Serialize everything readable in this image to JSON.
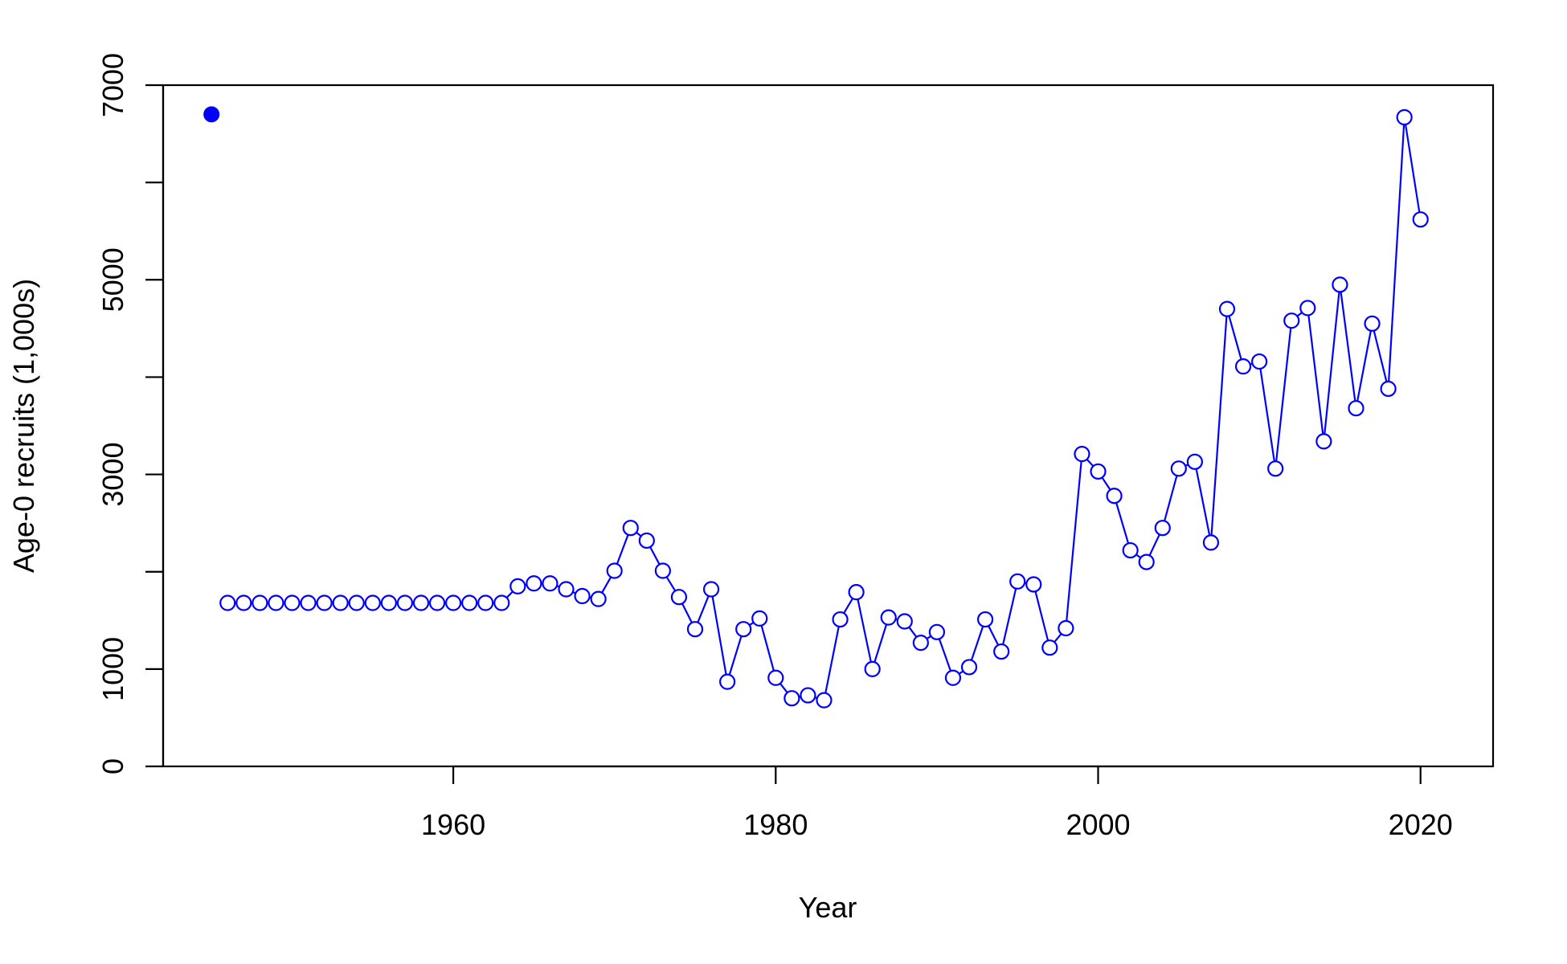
{
  "chart_data": {
    "type": "line",
    "title": "",
    "xlabel": "Year",
    "ylabel": "Age-0 recruits (1,000s)",
    "xlim": [
      1942.0,
      2024.5
    ],
    "ylim": [
      0,
      7000
    ],
    "x_ticks": [
      "1960",
      "1980",
      "2000",
      "2020"
    ],
    "y_ticks": [
      "0",
      "1000",
      "3000",
      "5000",
      "7000"
    ],
    "grid": false,
    "legend": "none",
    "color": "#0000ff",
    "virgin_point": {
      "x": 1945,
      "y": 6700,
      "style": "filled"
    },
    "series": [
      {
        "x": [
          1946,
          1947,
          1948,
          1949,
          1950,
          1951,
          1952,
          1953,
          1954,
          1955,
          1956,
          1957,
          1958,
          1959,
          1960,
          1961,
          1962,
          1963,
          1964,
          1965,
          1966,
          1967,
          1968,
          1969,
          1970,
          1971,
          1972,
          1973,
          1974,
          1975,
          1976,
          1977,
          1978,
          1979,
          1980,
          1981,
          1982,
          1983,
          1984,
          1985,
          1986,
          1987,
          1988,
          1989,
          1990,
          1991,
          1992,
          1993,
          1994,
          1995,
          1996,
          1997,
          1998,
          1999,
          2000,
          2001,
          2002,
          2003,
          2004,
          2005,
          2006,
          2007,
          2008,
          2009,
          2010,
          2011,
          2012,
          2013,
          2014,
          2015,
          2016,
          2017,
          2018,
          2019,
          2020
        ],
        "values": [
          1680,
          1680,
          1680,
          1680,
          1680,
          1680,
          1680,
          1680,
          1680,
          1680,
          1680,
          1680,
          1680,
          1680,
          1680,
          1680,
          1680,
          1680,
          1850,
          1880,
          1880,
          1820,
          1750,
          1720,
          2010,
          2450,
          2320,
          2010,
          1740,
          1410,
          1820,
          870,
          1410,
          1520,
          910,
          700,
          730,
          680,
          1510,
          1790,
          1000,
          1530,
          1490,
          1270,
          1380,
          910,
          1020,
          1510,
          1180,
          1900,
          1870,
          1220,
          1420,
          3210,
          3030,
          2780,
          2220,
          2100,
          2450,
          3060,
          3130,
          2300,
          4700,
          4110,
          4160,
          3060,
          4580,
          4710,
          3340,
          4950,
          3680,
          4550,
          3880,
          6670,
          5620
        ]
      }
    ]
  }
}
